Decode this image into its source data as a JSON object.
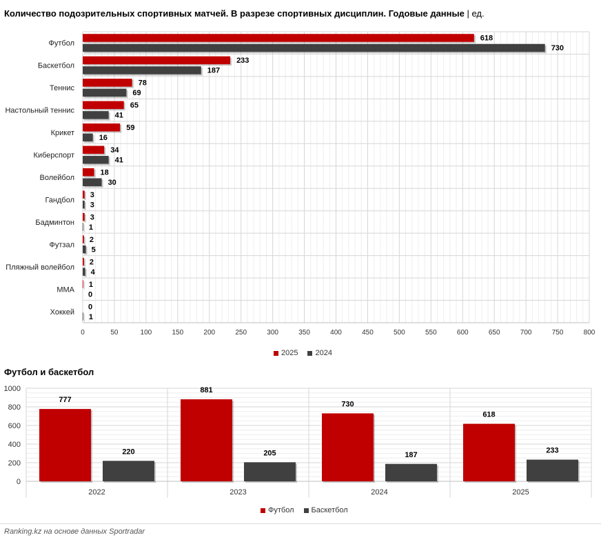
{
  "header": {
    "title": "Количество подозрительных спортивных матчей. В разрезе спортивных дисциплин. Годовые данные",
    "separator": "|",
    "unit": "ед."
  },
  "section2": {
    "title": "Футбол и баскетбол"
  },
  "source": "Ranking.kz на основе данных Sportradar",
  "colors": {
    "red": "#c00000",
    "dark": "#404040"
  },
  "chart_data": [
    {
      "type": "bar",
      "orientation": "horizontal",
      "title": "Количество подозрительных спортивных матчей. В разрезе спортивных дисциплин. Годовые данные | ед.",
      "categories": [
        "Футбол",
        "Баскетбол",
        "Теннис",
        "Настольный теннис",
        "Крикет",
        "Киберспорт",
        "Волейбол",
        "Гандбол",
        "Бадминтон",
        "Футзал",
        "Пляжный волейбол",
        "MMA",
        "Хоккей"
      ],
      "series": [
        {
          "name": "2025",
          "color": "#c00000",
          "values": [
            618,
            233,
            78,
            65,
            59,
            34,
            18,
            3,
            3,
            2,
            2,
            1,
            0
          ]
        },
        {
          "name": "2024",
          "color": "#404040",
          "values": [
            730,
            187,
            69,
            41,
            16,
            41,
            30,
            3,
            1,
            5,
            4,
            0,
            1
          ]
        }
      ],
      "xlim": [
        0,
        800
      ],
      "xticks": [
        0,
        50,
        100,
        150,
        200,
        250,
        300,
        350,
        400,
        450,
        500,
        550,
        600,
        650,
        700,
        750,
        800
      ],
      "grid": true,
      "legend": "bottom"
    },
    {
      "type": "bar",
      "orientation": "vertical",
      "title": "Футбол и баскетбол",
      "categories": [
        "2022",
        "2023",
        "2024",
        "2025"
      ],
      "series": [
        {
          "name": "Футбол",
          "color": "#c00000",
          "values": [
            777,
            881,
            730,
            618
          ]
        },
        {
          "name": "Баскетбол",
          "color": "#404040",
          "values": [
            220,
            205,
            187,
            233
          ]
        }
      ],
      "ylim": [
        0,
        1000
      ],
      "yticks": [
        0,
        200,
        400,
        600,
        800,
        1000
      ],
      "grid": true,
      "legend": "bottom"
    }
  ]
}
